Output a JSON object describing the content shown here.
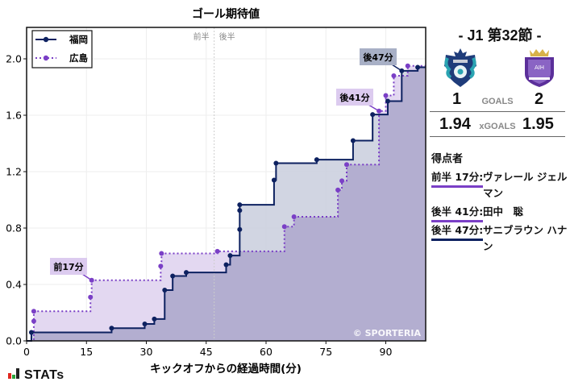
{
  "chart_data": {
    "type": "line",
    "subtype": "step",
    "title": "ゴール期待値",
    "xlabel": "キックオフからの経過時間(分)",
    "ylabel": "",
    "xlim": [
      0,
      100
    ],
    "ylim": [
      0,
      2.22
    ],
    "xticks": [
      0,
      15,
      30,
      45,
      60,
      75,
      90
    ],
    "yticks": [
      0.0,
      0.4,
      0.8,
      1.2,
      1.6,
      2.0
    ],
    "ytick_labels": [
      "0.0",
      "0.4",
      "0.8",
      "1.2",
      "1.6",
      "2.0"
    ],
    "grid": true,
    "legend_position": "upper left",
    "halftime_marker": {
      "x": 47,
      "labels": [
        "前半",
        "後半"
      ]
    },
    "watermark": "© SPORTERIA",
    "series": [
      {
        "name": "福岡",
        "color": "#0d2160",
        "fill": "#c9cedd",
        "style": "solid",
        "points": [
          [
            0,
            0
          ],
          [
            1.2,
            0.06
          ],
          [
            21.3,
            0.09
          ],
          [
            29.6,
            0.12
          ],
          [
            32,
            0.155
          ],
          [
            34.6,
            0.36
          ],
          [
            36.6,
            0.46
          ],
          [
            40,
            0.485
          ],
          [
            50,
            0.54
          ],
          [
            51,
            0.605
          ],
          [
            53.4,
            0.79
          ],
          [
            53.4,
            0.925
          ],
          [
            53.4,
            0.965
          ],
          [
            62,
            1.14
          ],
          [
            62.5,
            1.26
          ],
          [
            72.7,
            1.285
          ],
          [
            81.8,
            1.42
          ],
          [
            86.7,
            1.605
          ],
          [
            90.5,
            1.7
          ],
          [
            94,
            1.915
          ],
          [
            98,
            1.94
          ],
          [
            100,
            1.94
          ]
        ]
      },
      {
        "name": "広島",
        "color": "#7a3fc6",
        "fill": "#e3d8f1",
        "style": "dotted",
        "points": [
          [
            0,
            0
          ],
          [
            1.8,
            0.14
          ],
          [
            1.8,
            0.21
          ],
          [
            16,
            0.31
          ],
          [
            16.3,
            0.43
          ],
          [
            33.6,
            0.53
          ],
          [
            33.8,
            0.62
          ],
          [
            47.8,
            0.635
          ],
          [
            64.6,
            0.81
          ],
          [
            67,
            0.88
          ],
          [
            78,
            1.07
          ],
          [
            79,
            1.135
          ],
          [
            80.2,
            1.25
          ],
          [
            88.3,
            1.63
          ],
          [
            90,
            1.74
          ],
          [
            92,
            1.88
          ],
          [
            95.5,
            1.95
          ],
          [
            100,
            1.95
          ]
        ]
      }
    ],
    "annotations": [
      {
        "text": "前半17分",
        "x": 16.3,
        "y": 0.43,
        "team": "広島"
      },
      {
        "text": "後半41分",
        "x": 88.3,
        "y": 1.63,
        "team": "広島"
      },
      {
        "text": "後半47分",
        "x": 94,
        "y": 1.915,
        "team": "福岡"
      }
    ],
    "annotation_labels": [
      "前17分",
      "後41分",
      "後47分"
    ]
  },
  "match": {
    "round": "- J1 第32節 -",
    "home": {
      "name": "福岡",
      "goals": "1",
      "xgoals": "1.94",
      "logo": "avispa-fukuoka-crest-icon"
    },
    "away": {
      "name": "広島",
      "goals": "2",
      "xgoals": "1.95",
      "logo": "sanfrecce-hiroshima-crest-icon"
    },
    "goals_label": "GOALS",
    "xgoals_label": "xGOALS"
  },
  "scorers": {
    "title": "得点者",
    "items": [
      {
        "time": "前半 17分:",
        "name": "ヴァレール ジェルマン",
        "color": "#7a3fc6"
      },
      {
        "time": "後半 41分:",
        "name": "田中　聡",
        "color": "#7a3fc6"
      },
      {
        "time": "後半 47分:",
        "name": "サニブラウン ハナン",
        "color": "#0d2160"
      }
    ]
  },
  "branding": {
    "stats_label": "STATs",
    "bar_colors": [
      "#e0271f",
      "#2ba33a",
      "#222222"
    ]
  }
}
